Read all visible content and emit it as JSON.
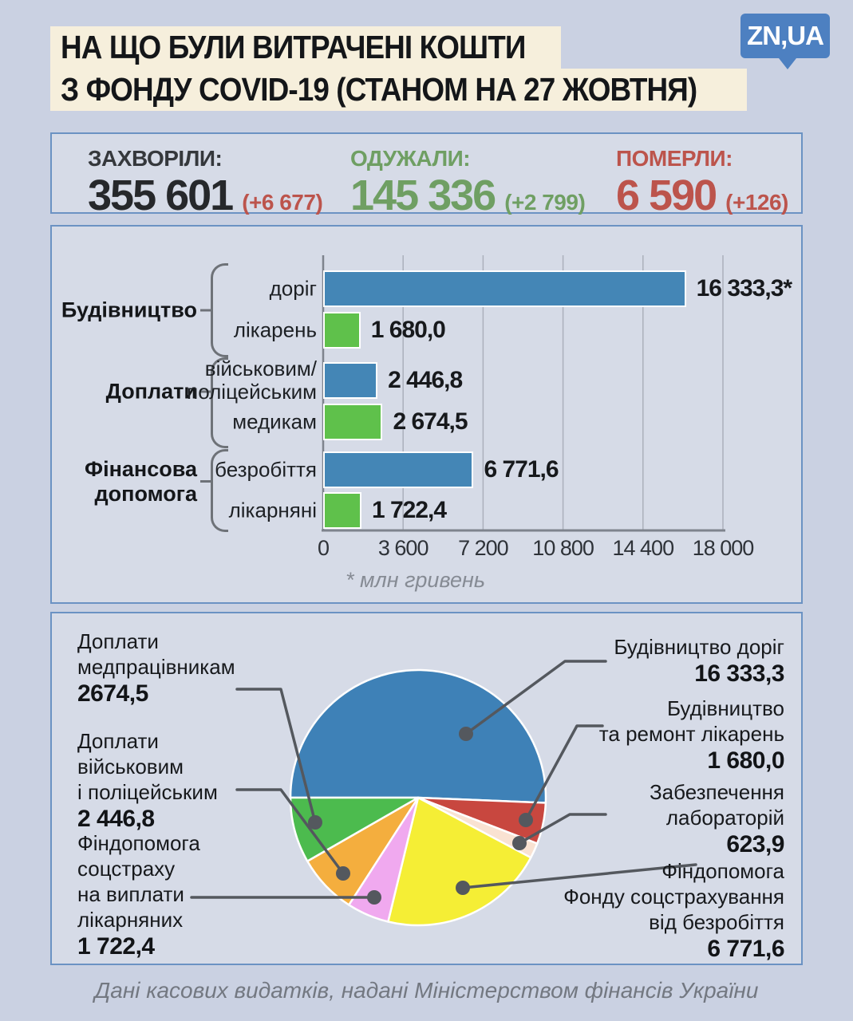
{
  "logo": {
    "text": "ZN,UA"
  },
  "title": {
    "line1": "НА ЩО БУЛИ ВИТРАЧЕНІ КОШТИ",
    "line2": "З ФОНДУ COVID-19 (СТАНОМ НА 27 ЖОВТНЯ)"
  },
  "stats": [
    {
      "id": "infected",
      "label": "ЗАХВОРІЛИ:",
      "value": "355 601",
      "delta": "(+6 677)",
      "label_color": "#35383c",
      "value_color": "#26282b",
      "delta_color": "#bc544c"
    },
    {
      "id": "recovered",
      "label": "ОДУЖАЛИ:",
      "value": "145 336",
      "delta": "(+2 799)",
      "label_color": "#6f9f63",
      "value_color": "#6f9f63",
      "delta_color": "#6f9f63"
    },
    {
      "id": "died",
      "label": "ПОМЕРЛИ:",
      "value": "6 590",
      "delta": "(+126)",
      "label_color": "#bc544c",
      "value_color": "#bc544c",
      "delta_color": "#bc544c"
    }
  ],
  "chart_data": [
    {
      "type": "bar",
      "unit_note": "* млн гривень",
      "xlabel": "",
      "ylabel": "",
      "xlim": [
        0,
        18000
      ],
      "grid": true,
      "x_ticks": [
        {
          "value": 0,
          "label": "0"
        },
        {
          "value": 3600,
          "label": "3 600"
        },
        {
          "value": 7200,
          "label": "7 200"
        },
        {
          "value": 10800,
          "label": "10 800"
        },
        {
          "value": 14400,
          "label": "14 400"
        },
        {
          "value": 18000,
          "label": "18 000"
        }
      ],
      "bar_colors": {
        "blue": "#4486b6",
        "green": "#5fc14b"
      },
      "groups": [
        {
          "label_lines": [
            "Будівництво"
          ],
          "rows": [
            {
              "label_lines": [
                "доріг"
              ],
              "value": 16333.3,
              "value_label": "16 333,3*",
              "color": "blue"
            },
            {
              "label_lines": [
                "лікарень"
              ],
              "value": 1680.0,
              "value_label": "1 680,0",
              "color": "green"
            }
          ]
        },
        {
          "label_lines": [
            "Доплати"
          ],
          "rows": [
            {
              "label_lines": [
                "військовим/",
                "поліцейським"
              ],
              "value": 2446.8,
              "value_label": "2 446,8",
              "color": "blue"
            },
            {
              "label_lines": [
                "медикам"
              ],
              "value": 2674.5,
              "value_label": "2 674,5",
              "color": "green"
            }
          ]
        },
        {
          "label_lines": [
            "Фінансова",
            "допомога"
          ],
          "rows": [
            {
              "label_lines": [
                "безробіття"
              ],
              "value": 6771.6,
              "value_label": "6 771,6",
              "color": "blue"
            },
            {
              "label_lines": [
                "лікарняні"
              ],
              "value": 1722.4,
              "value_label": "1 722,4",
              "color": "green"
            }
          ]
        }
      ]
    },
    {
      "type": "pie",
      "start_angle_deg": 180,
      "direction": "clockwise",
      "slices": [
        {
          "name": "Будівництво доріг",
          "value": 16333.3,
          "value_label": "16 333,3",
          "color": "#3e81b7",
          "label_lines": [
            "Будівництво доріг"
          ],
          "side": "right"
        },
        {
          "name": "Будівництво та ремонт лікарень",
          "value": 1680.0,
          "value_label": "1 680,0",
          "color": "#c8473f",
          "label_lines": [
            "Будівництво",
            "та ремонт лікарень"
          ],
          "side": "right"
        },
        {
          "name": "Забезпечення лабораторій",
          "value": 623.9,
          "value_label": "623,9",
          "color": "#f9e2d2",
          "label_lines": [
            "Забезпечення",
            "лабораторій"
          ],
          "side": "right"
        },
        {
          "name": "Фіндопомога Фонду соцстрахування від безробіття",
          "value": 6771.6,
          "value_label": "6 771,6",
          "color": "#f5ee35",
          "label_lines": [
            "Фіндопомога",
            "Фонду соцстрахування",
            "від безробіття"
          ],
          "side": "right"
        },
        {
          "name": "Фіндопомога соцстраху на виплати лікарняних",
          "value": 1722.4,
          "value_label": "1 722,4",
          "color": "#f0a9ef",
          "label_lines": [
            "Фіндопомога",
            "соцстраху",
            "на виплати",
            "лікарняних"
          ],
          "side": "left"
        },
        {
          "name": "Доплати військовим і поліцейським",
          "value": 2446.8,
          "value_label": "2 446,8",
          "color": "#f4ae3e",
          "label_lines": [
            "Доплати",
            "військовим",
            "і поліцейським"
          ],
          "side": "left"
        },
        {
          "name": "Доплати медпрацівникам",
          "value": 2674.5,
          "value_label": "2674,5",
          "color": "#4cbb4e",
          "label_lines": [
            "Доплати",
            "медпрацівникам"
          ],
          "side": "left"
        }
      ]
    }
  ],
  "footer": "Дані касових видатків, надані Міністерством фінансів України"
}
